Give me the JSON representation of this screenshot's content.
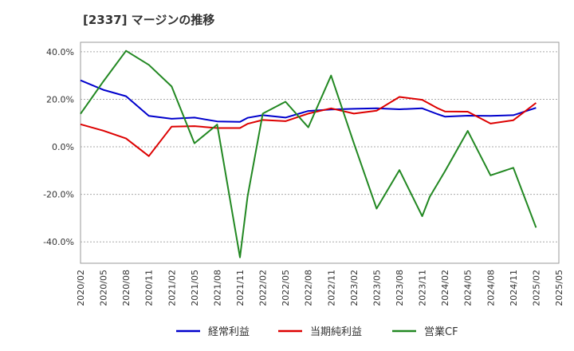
{
  "chart_data": {
    "type": "line",
    "title": "[2337]  マージンの推移",
    "xlabel": "",
    "ylabel": "",
    "x_ticks": [
      "2020/02",
      "2020/05",
      "2020/08",
      "2020/11",
      "2021/02",
      "2021/05",
      "2021/08",
      "2021/11",
      "2022/02",
      "2022/05",
      "2022/08",
      "2022/11",
      "2023/02",
      "2023/05",
      "2023/08",
      "2023/11",
      "2024/02",
      "2024/05",
      "2024/08",
      "2024/11",
      "2025/02",
      "2025/05"
    ],
    "y_ticks": [
      "-40.0%",
      "-20.0%",
      "0.0%",
      "20.0%",
      "40.0%"
    ],
    "y_tick_values": [
      -40,
      -20,
      0,
      20,
      40
    ],
    "ylim": [
      -49,
      44
    ],
    "grid": true,
    "legend_position": "bottom",
    "series": [
      {
        "name": "経常利益",
        "color": "#0000cc",
        "points": [
          [
            "2020/02",
            28
          ],
          [
            "2020/05",
            24
          ],
          [
            "2020/08",
            21.3
          ],
          [
            "2020/11",
            13
          ],
          [
            "2021/02",
            11.8
          ],
          [
            "2021/05",
            12.3
          ],
          [
            "2021/08",
            10.7
          ],
          [
            "2021/11",
            10.5
          ],
          [
            "2021/12",
            12.2
          ],
          [
            "2022/02",
            13.3
          ],
          [
            "2022/05",
            12.3
          ],
          [
            "2022/08",
            15.1
          ],
          [
            "2022/11",
            15.7
          ],
          [
            "2023/02",
            16
          ],
          [
            "2023/05",
            16.2
          ],
          [
            "2023/08",
            15.8
          ],
          [
            "2023/11",
            16.2
          ],
          [
            "2024/01",
            13.8
          ],
          [
            "2024/02",
            12.7
          ],
          [
            "2024/05",
            13.1
          ],
          [
            "2024/08",
            13
          ],
          [
            "2024/11",
            13.3
          ],
          [
            "2025/02",
            16.4
          ]
        ]
      },
      {
        "name": "当期純利益",
        "color": "#dd0000",
        "points": [
          [
            "2020/02",
            9.5
          ],
          [
            "2020/05",
            6.8
          ],
          [
            "2020/08",
            3.5
          ],
          [
            "2020/11",
            -3.9
          ],
          [
            "2021/02",
            8.5
          ],
          [
            "2021/05",
            8.7
          ],
          [
            "2021/08",
            7.9
          ],
          [
            "2021/11",
            7.9
          ],
          [
            "2021/12",
            9.7
          ],
          [
            "2022/02",
            11.3
          ],
          [
            "2022/05",
            10.8
          ],
          [
            "2022/08",
            14
          ],
          [
            "2022/11",
            16.2
          ],
          [
            "2023/02",
            14
          ],
          [
            "2023/05",
            15.2
          ],
          [
            "2023/08",
            21
          ],
          [
            "2023/11",
            19.8
          ],
          [
            "2024/01",
            16.3
          ],
          [
            "2024/02",
            14.9
          ],
          [
            "2024/05",
            14.8
          ],
          [
            "2024/08",
            9.8
          ],
          [
            "2024/11",
            11.2
          ],
          [
            "2025/02",
            18.5
          ]
        ]
      },
      {
        "name": "営業CF",
        "color": "#228822",
        "points": [
          [
            "2020/02",
            13.9
          ],
          [
            "2020/05",
            27.5
          ],
          [
            "2020/08",
            40.4
          ],
          [
            "2020/11",
            34.5
          ],
          [
            "2021/02",
            25.4
          ],
          [
            "2021/05",
            1.5
          ],
          [
            "2021/08",
            9.4
          ],
          [
            "2021/11",
            -46.5
          ],
          [
            "2021/12",
            -21
          ],
          [
            "2022/02",
            14
          ],
          [
            "2022/05",
            19
          ],
          [
            "2022/08",
            8.2
          ],
          [
            "2022/11",
            30
          ],
          [
            "2023/02",
            1.5
          ],
          [
            "2023/05",
            -26
          ],
          [
            "2023/08",
            -9.8
          ],
          [
            "2023/11",
            -29.2
          ],
          [
            "2023/12",
            -21
          ],
          [
            "2024/02",
            -10.3
          ],
          [
            "2024/05",
            6.7
          ],
          [
            "2024/08",
            -12
          ],
          [
            "2024/11",
            -8.8
          ],
          [
            "2025/02",
            -34
          ]
        ]
      }
    ]
  }
}
